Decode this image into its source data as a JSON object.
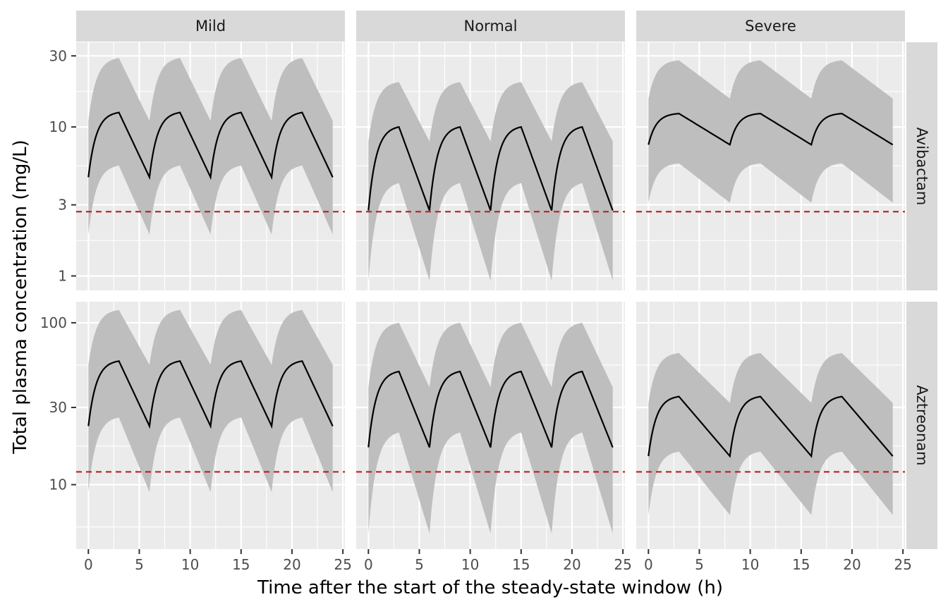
{
  "chart_data": {
    "type": "line",
    "xlabel": "Time after the start of the steady-state window (h)",
    "ylabel": "Total plasma concentration (mg/L)",
    "facet_columns": [
      "Mild",
      "Normal",
      "Severe"
    ],
    "facet_rows": [
      "Avibactam",
      "Aztreonam"
    ],
    "x_axis": {
      "range": [
        -1.2,
        25.2
      ],
      "ticks": [
        0,
        5,
        10,
        15,
        20,
        25
      ],
      "tick_labels": [
        "0",
        "5",
        "10",
        "15",
        "20",
        "25"
      ]
    },
    "y_scale": "log10",
    "rows": [
      {
        "name": "Avibactam",
        "y_range": [
          0.8,
          37
        ],
        "y_ticks": [
          1,
          3,
          10,
          30
        ],
        "y_tick_labels": [
          "1",
          "3",
          "10",
          "30"
        ],
        "y_minor_ticks": [
          1.73,
          5.48,
          17.3
        ],
        "threshold": 2.7
      },
      {
        "name": "Aztreonam",
        "y_range": [
          4.0,
          135
        ],
        "y_ticks": [
          10,
          30,
          100
        ],
        "y_tick_labels": [
          "10",
          "30",
          "100"
        ],
        "y_minor_ticks": [
          5.48,
          17.3,
          54.8
        ],
        "threshold": 12
      }
    ],
    "panels": [
      {
        "row": "Avibactam",
        "column": "Mild",
        "dose_interval_h": 6,
        "infusion_h": 3,
        "median_start": 4.6,
        "median_peak": 12.5,
        "lower_start": 1.9,
        "lower_peak": 5.5,
        "upper_start": 11.0,
        "upper_peak": 29.0
      },
      {
        "row": "Avibactam",
        "column": "Normal",
        "dose_interval_h": 6,
        "infusion_h": 3,
        "median_start": 2.75,
        "median_peak": 10.0,
        "lower_start": 0.93,
        "lower_peak": 4.2,
        "upper_start": 8.0,
        "upper_peak": 20.0
      },
      {
        "row": "Avibactam",
        "column": "Severe",
        "dose_interval_h": 8,
        "infusion_h": 3,
        "median_start": 7.6,
        "median_peak": 12.3,
        "lower_start": 3.1,
        "lower_peak": 5.7,
        "upper_start": 15.5,
        "upper_peak": 28.0
      },
      {
        "row": "Aztreonam",
        "column": "Mild",
        "dose_interval_h": 6,
        "infusion_h": 3,
        "median_start": 23.0,
        "median_peak": 58.0,
        "lower_start": 9.0,
        "lower_peak": 26.0,
        "upper_start": 55.0,
        "upper_peak": 120.0
      },
      {
        "row": "Aztreonam",
        "column": "Normal",
        "dose_interval_h": 6,
        "infusion_h": 3,
        "median_start": 17.0,
        "median_peak": 50.0,
        "lower_start": 5.0,
        "lower_peak": 21.0,
        "upper_start": 40.0,
        "upper_peak": 100.0
      },
      {
        "row": "Aztreonam",
        "column": "Severe",
        "dose_interval_h": 8,
        "infusion_h": 3,
        "median_start": 15.0,
        "median_peak": 35.0,
        "lower_start": 6.5,
        "lower_peak": 16.0,
        "upper_start": 32.0,
        "upper_peak": 65.0
      }
    ],
    "colors": {
      "panel_background": "#ebebeb",
      "strip_background": "#d9d9d9",
      "grid_major": "#ffffff",
      "ribbon": "#bebebe",
      "median_line": "#000000",
      "threshold_line": "#b22222",
      "tick_text": "#4d4d4d"
    },
    "grid": true,
    "legend": "none"
  }
}
